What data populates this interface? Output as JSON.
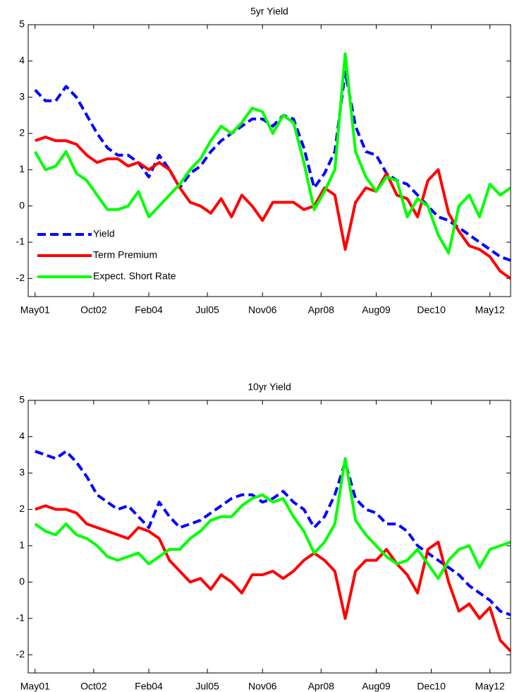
{
  "chart_data": [
    {
      "type": "line",
      "title": "5yr Yield",
      "x": [
        "May01",
        "Aug01",
        "Nov01",
        "Feb02",
        "May02",
        "Aug02",
        "Nov02",
        "Feb03",
        "May03",
        "Aug03",
        "Nov03",
        "Feb04",
        "May04",
        "Aug04",
        "Nov04",
        "Feb05",
        "May05",
        "Aug05",
        "Nov05",
        "Feb06",
        "May06",
        "Aug06",
        "Nov06",
        "Feb07",
        "May07",
        "Aug07",
        "Nov07",
        "Feb08",
        "May08",
        "Aug08",
        "Nov08",
        "Feb09",
        "May09",
        "Aug09",
        "Nov09",
        "Feb10",
        "May10",
        "Aug10",
        "Nov10",
        "Feb11",
        "May11",
        "Aug11",
        "Nov11",
        "Feb12",
        "May12",
        "Aug12",
        "Nov12"
      ],
      "xlim": [
        "Mar01",
        "Nov12"
      ],
      "xticks": [
        "May01",
        "Oct02",
        "Feb04",
        "Jul05",
        "Nov06",
        "Apr08",
        "Aug09",
        "Dec10",
        "May12"
      ],
      "ylim": [
        -2.5,
        5
      ],
      "yticks": [
        -2,
        -1,
        0,
        1,
        2,
        3,
        4,
        5
      ],
      "legend": "lower left",
      "series": [
        {
          "name": "Yield",
          "color": "#0000ff",
          "linestyle": "dashed",
          "values": [
            3.2,
            2.9,
            2.9,
            3.3,
            3.0,
            2.5,
            2.0,
            1.6,
            1.4,
            1.4,
            1.2,
            0.8,
            1.4,
            1.0,
            0.5,
            0.9,
            1.1,
            1.5,
            1.8,
            2.0,
            2.2,
            2.4,
            2.4,
            2.2,
            2.5,
            2.4,
            1.6,
            0.5,
            0.9,
            1.5,
            3.7,
            2.2,
            1.5,
            1.4,
            0.9,
            0.7,
            0.6,
            0.3,
            0.0,
            -0.3,
            -0.4,
            -0.6,
            -0.8,
            -1.0,
            -1.2,
            -1.4,
            -1.5
          ]
        },
        {
          "name": "Term Premium",
          "color": "#ff0000",
          "linestyle": "solid",
          "values": [
            1.8,
            1.9,
            1.8,
            1.8,
            1.7,
            1.4,
            1.2,
            1.3,
            1.3,
            1.1,
            1.2,
            1.0,
            1.2,
            1.0,
            0.5,
            0.1,
            0.0,
            -0.2,
            0.2,
            -0.3,
            0.3,
            0.0,
            -0.4,
            0.1,
            0.1,
            0.1,
            -0.1,
            0.0,
            0.5,
            0.3,
            -1.2,
            0.1,
            0.5,
            0.4,
            0.9,
            0.3,
            0.2,
            -0.3,
            0.7,
            1.0,
            -0.2,
            -0.7,
            -1.1,
            -1.2,
            -1.4,
            -1.8,
            -2.0
          ]
        },
        {
          "name": "Expect. Short Rate",
          "color": "#00ff00",
          "linestyle": "solid",
          "values": [
            1.5,
            1.0,
            1.1,
            1.5,
            0.9,
            0.7,
            0.3,
            -0.1,
            -0.1,
            0.0,
            0.4,
            -0.3,
            0.0,
            0.3,
            0.6,
            1.0,
            1.3,
            1.8,
            2.2,
            2.0,
            2.3,
            2.7,
            2.6,
            2.0,
            2.5,
            2.3,
            1.2,
            -0.1,
            0.4,
            1.0,
            4.2,
            1.5,
            0.8,
            0.4,
            0.8,
            0.7,
            -0.3,
            0.2,
            0.0,
            -0.8,
            -1.3,
            0.0,
            0.3,
            -0.3,
            0.6,
            0.3,
            0.5
          ]
        }
      ]
    },
    {
      "type": "line",
      "title": "10yr Yield",
      "x": [
        "May01",
        "Aug01",
        "Nov01",
        "Feb02",
        "May02",
        "Aug02",
        "Nov02",
        "Feb03",
        "May03",
        "Aug03",
        "Nov03",
        "Feb04",
        "May04",
        "Aug04",
        "Nov04",
        "Feb05",
        "May05",
        "Aug05",
        "Nov05",
        "Feb06",
        "May06",
        "Aug06",
        "Nov06",
        "Feb07",
        "May07",
        "Aug07",
        "Nov07",
        "Feb08",
        "May08",
        "Aug08",
        "Nov08",
        "Feb09",
        "May09",
        "Aug09",
        "Nov09",
        "Feb10",
        "May10",
        "Aug10",
        "Nov10",
        "Feb11",
        "May11",
        "Aug11",
        "Nov11",
        "Feb12",
        "May12",
        "Aug12",
        "Nov12"
      ],
      "xlim": [
        "Mar01",
        "Nov12"
      ],
      "xticks": [
        "May01",
        "Oct02",
        "Feb04",
        "Jul05",
        "Nov06",
        "Apr08",
        "Aug09",
        "Dec10",
        "May12"
      ],
      "ylim": [
        -2.5,
        5
      ],
      "yticks": [
        -2,
        -1,
        0,
        1,
        2,
        3,
        4,
        5
      ],
      "series": [
        {
          "color": "#0000ff",
          "linestyle": "dashed",
          "values": [
            3.6,
            3.5,
            3.4,
            3.6,
            3.3,
            2.9,
            2.4,
            2.2,
            2.0,
            2.1,
            1.8,
            1.5,
            2.2,
            1.8,
            1.5,
            1.6,
            1.7,
            1.9,
            2.1,
            2.3,
            2.4,
            2.4,
            2.2,
            2.3,
            2.5,
            2.2,
            2.0,
            1.5,
            1.8,
            2.4,
            3.3,
            2.3,
            2.0,
            1.9,
            1.6,
            1.6,
            1.4,
            1.0,
            0.8,
            0.6,
            0.4,
            0.2,
            -0.1,
            -0.3,
            -0.5,
            -0.8,
            -0.9
          ]
        },
        {
          "color": "#ff0000",
          "linestyle": "solid",
          "values": [
            2.0,
            2.1,
            2.0,
            2.0,
            1.9,
            1.6,
            1.5,
            1.4,
            1.3,
            1.2,
            1.5,
            1.4,
            1.2,
            0.6,
            0.3,
            0.0,
            0.1,
            -0.2,
            0.2,
            0.0,
            -0.3,
            0.2,
            0.2,
            0.3,
            0.1,
            0.3,
            0.6,
            0.8,
            0.6,
            0.3,
            -1.0,
            0.3,
            0.6,
            0.6,
            0.9,
            0.5,
            0.2,
            -0.3,
            0.9,
            1.1,
            0.0,
            -0.8,
            -0.6,
            -1.0,
            -0.7,
            -1.6,
            -1.9
          ]
        },
        {
          "color": "#00ff00",
          "linestyle": "solid",
          "values": [
            1.6,
            1.4,
            1.3,
            1.6,
            1.3,
            1.2,
            1.0,
            0.7,
            0.6,
            0.7,
            0.8,
            0.5,
            0.7,
            0.9,
            0.9,
            1.2,
            1.4,
            1.7,
            1.8,
            1.8,
            2.1,
            2.3,
            2.4,
            2.2,
            2.3,
            1.8,
            1.4,
            0.8,
            1.1,
            1.6,
            3.4,
            1.7,
            1.3,
            1.0,
            0.7,
            0.5,
            0.6,
            0.9,
            0.5,
            0.1,
            0.6,
            0.9,
            1.0,
            0.4,
            0.9,
            1.0,
            1.1
          ]
        }
      ]
    }
  ]
}
